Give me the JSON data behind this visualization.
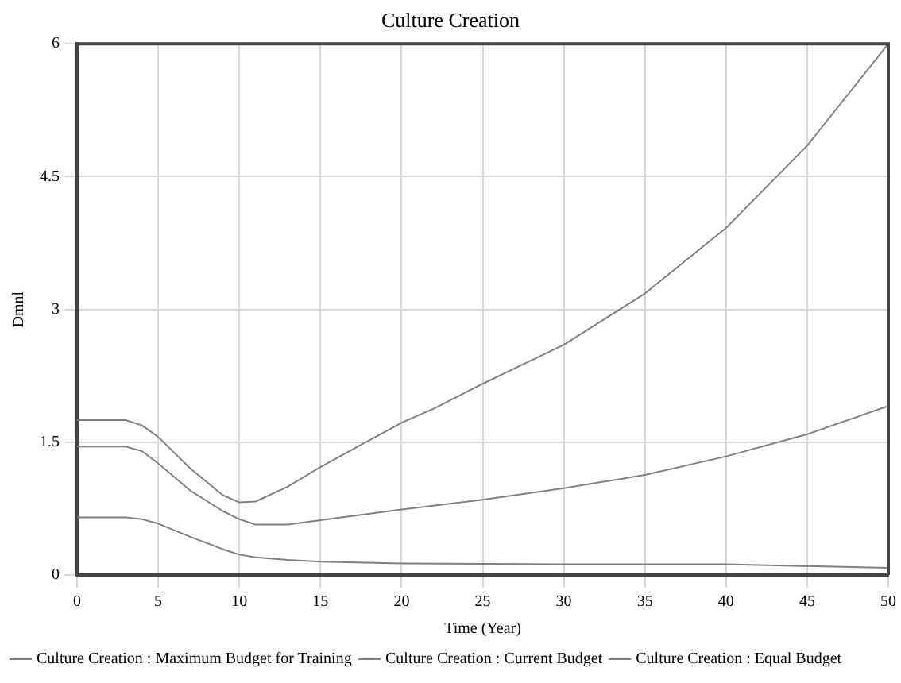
{
  "chart_data": {
    "type": "line",
    "title": "Culture Creation",
    "xlabel": "Time (Year)",
    "ylabel": "Dmnl",
    "xlim": [
      0,
      50
    ],
    "xticks": [
      0,
      5,
      10,
      15,
      20,
      25,
      30,
      35,
      40,
      45,
      50
    ],
    "ylim": [
      0,
      6
    ],
    "yticks": [
      0,
      1.5,
      3,
      4.5,
      6
    ],
    "grid": true,
    "legend": "bottom",
    "marker": "none",
    "line_style": "solid",
    "series": [
      {
        "name": "Culture Creation : Maximum Budget for Training",
        "color": "#808080",
        "x": [
          0,
          3,
          4,
          5,
          7,
          9,
          10,
          11,
          13,
          15,
          17,
          20,
          22,
          25,
          27.5,
          30,
          35,
          40,
          45,
          50
        ],
        "values": [
          1.75,
          1.75,
          1.69,
          1.56,
          1.2,
          0.9,
          0.82,
          0.83,
          1.0,
          1.22,
          1.42,
          1.72,
          1.88,
          2.16,
          2.38,
          2.6,
          3.18,
          3.92,
          4.85,
          6.0
        ]
      },
      {
        "name": "Culture Creation : Current Budget",
        "color": "#808080",
        "x": [
          0,
          3,
          4,
          5,
          7,
          9,
          10,
          11,
          13,
          15,
          20,
          25,
          30,
          35,
          40,
          45,
          50
        ],
        "values": [
          1.45,
          1.45,
          1.4,
          1.26,
          0.95,
          0.72,
          0.63,
          0.57,
          0.57,
          0.62,
          0.74,
          0.85,
          0.98,
          1.13,
          1.34,
          1.59,
          1.91
        ]
      },
      {
        "name": "Culture Creation : Equal Budget",
        "color": "#808080",
        "x": [
          0,
          3,
          4,
          5,
          7,
          9,
          10,
          11,
          13,
          15,
          20,
          30,
          40,
          50
        ],
        "values": [
          0.65,
          0.65,
          0.63,
          0.58,
          0.43,
          0.29,
          0.23,
          0.2,
          0.17,
          0.15,
          0.13,
          0.12,
          0.12,
          0.08
        ]
      }
    ]
  }
}
